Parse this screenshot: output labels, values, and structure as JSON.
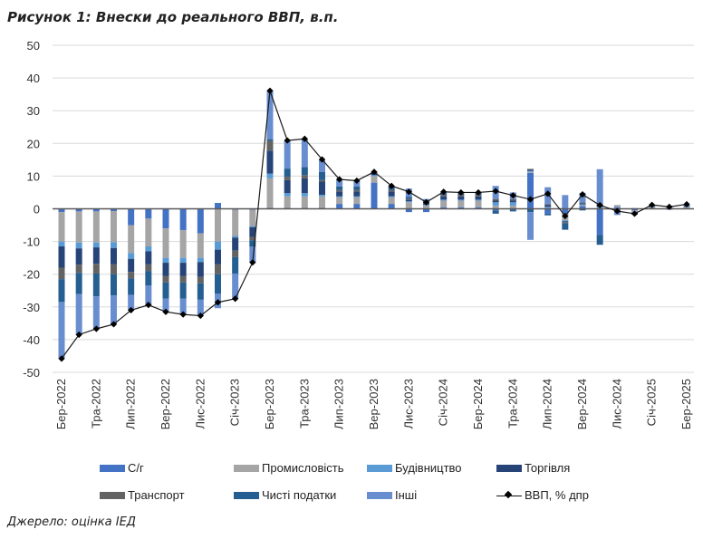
{
  "title": "Рисунок 1: Внески до реального ВВП, в.п.",
  "source": "Джерело: оцінка ІЕД",
  "chart_data": {
    "type": "bar",
    "subtype": "stacked-bar-with-line",
    "title": "Рисунок 1: Внески до реального ВВП, в.п.",
    "xlabel": "",
    "ylabel": "",
    "ylim": [
      -50,
      50
    ],
    "yticks": [
      50,
      40,
      30,
      20,
      10,
      0,
      -10,
      -20,
      -30,
      -40,
      -50
    ],
    "grid": true,
    "legend_position": "bottom",
    "categories": [
      "Бер-2022",
      "Кві-2022",
      "Тра-2022",
      "Чер-2022",
      "Лип-2022",
      "Сер-2022",
      "Вер-2022",
      "Жов-2022",
      "Лис-2022",
      "Гру-2022",
      "Січ-2023",
      "Лют-2023",
      "Бер-2023",
      "Кві-2023",
      "Тра-2023",
      "Чер-2023",
      "Лип-2023",
      "Сер-2023",
      "Вер-2023",
      "Жов-2023",
      "Лис-2023",
      "Гру-2023",
      "Січ-2024",
      "Лют-2024",
      "Бер-2024",
      "Кві-2024",
      "Тра-2024",
      "Чер-2024",
      "Лип-2024",
      "Сер-2024",
      "Вер-2024",
      "Жов-2024",
      "Лис-2024",
      "Гру-2024",
      "Січ-2025",
      "Лют-2025",
      "Бер-2025"
    ],
    "tick_labels": [
      "Бер-2022",
      "Тра-2022",
      "Лип-2022",
      "Вер-2022",
      "Лис-2022",
      "Січ-2023",
      "Бер-2023",
      "Тра-2023",
      "Лип-2023",
      "Вер-2023",
      "Лис-2023",
      "Січ-2024",
      "Бер-2024",
      "Тра-2024",
      "Лип-2024",
      "Вер-2024",
      "Лис-2024",
      "Січ-2025",
      "Бер-2025"
    ],
    "series": [
      {
        "name": "С/г",
        "color": "#4472C4",
        "kind": "bar",
        "values": [
          -1.0,
          -0.8,
          -0.8,
          -0.7,
          -5.0,
          -3.0,
          -6.0,
          -6.5,
          -7.5,
          1.8,
          -0.3,
          -0.3,
          0.3,
          0.3,
          0.3,
          0.3,
          1.5,
          1.5,
          8.0,
          1.5,
          -1.0,
          -1.0,
          0.5,
          0.5,
          0.5,
          -0.5,
          -0.3,
          11.0,
          -1.5,
          -1.5,
          0.8,
          -8.0,
          0.5,
          -0.5,
          0.2,
          0.2,
          0.2
        ]
      },
      {
        "name": "Промисловість",
        "color": "#A5A5A5",
        "kind": "bar",
        "values": [
          -9.0,
          -9.5,
          -9.5,
          -9.5,
          -8.5,
          -8.5,
          -9.0,
          -8.5,
          -7.5,
          -10.0,
          -8.0,
          -5.0,
          9.0,
          3.5,
          3.5,
          3.5,
          2.0,
          2.0,
          2.0,
          2.0,
          2.0,
          1.0,
          2.0,
          2.0,
          2.0,
          1.0,
          1.0,
          0.3,
          0.3,
          -2.0,
          0.3,
          0.3,
          0.3,
          -0.5,
          0.2,
          0.2,
          0.2
        ]
      },
      {
        "name": "Будівництво",
        "color": "#5B9BD5",
        "kind": "bar",
        "values": [
          -1.5,
          -1.8,
          -1.5,
          -1.8,
          -1.8,
          -1.5,
          -1.5,
          -1.5,
          -1.3,
          -2.5,
          -0.5,
          -0.3,
          1.5,
          1.0,
          1.0,
          0.5,
          0.3,
          0.3,
          0.3,
          0.3,
          0.3,
          0.2,
          0.3,
          0.3,
          0.3,
          1.0,
          1.0,
          0.3,
          0.3,
          -0.3,
          0.3,
          0.3,
          0.1,
          -0.2,
          0.1,
          0.1,
          0.1
        ]
      },
      {
        "name": "Торгівля",
        "color": "#264478",
        "kind": "bar",
        "values": [
          -6.5,
          -5.0,
          -5.0,
          -5.0,
          -4.0,
          -4.0,
          -4.0,
          -4.0,
          -4.5,
          -4.5,
          -4.0,
          -3.0,
          7.0,
          4.0,
          4.5,
          4.0,
          1.5,
          1.5,
          0.5,
          1.5,
          0.5,
          0.3,
          1.0,
          1.0,
          1.0,
          0.5,
          0.5,
          0.3,
          0.5,
          -0.3,
          0.3,
          0.5,
          0.1,
          -0.2,
          0.1,
          0.1,
          0.1
        ]
      },
      {
        "name": "Транспорт",
        "color": "#636363",
        "kind": "bar",
        "values": [
          -3.5,
          -2.5,
          -3.0,
          -3.0,
          -2.0,
          -2.0,
          -2.0,
          -2.0,
          -2.0,
          -3.0,
          -2.0,
          -1.0,
          3.0,
          1.0,
          1.0,
          0.5,
          0.5,
          0.5,
          0.2,
          0.5,
          0.3,
          0.2,
          0.5,
          0.5,
          0.5,
          0.5,
          0.5,
          0.3,
          0.3,
          -0.3,
          0.3,
          0.3,
          0.1,
          -0.1,
          0.1,
          0.1,
          0.1
        ]
      },
      {
        "name": "Чисті податки",
        "color": "#255E91",
        "kind": "bar",
        "values": [
          -7.0,
          -6.5,
          -7.0,
          -6.5,
          -5.0,
          -4.5,
          -5.0,
          -5.0,
          -5.0,
          -6.0,
          -5.0,
          -2.0,
          0.5,
          2.5,
          2.5,
          2.5,
          1.0,
          1.0,
          0.2,
          1.0,
          0.5,
          0.3,
          0.5,
          0.5,
          0.5,
          -1.0,
          -0.5,
          -1.0,
          -0.5,
          -2.0,
          -0.5,
          -3.0,
          -0.3,
          -0.3,
          0.2,
          0.2,
          0.2
        ]
      },
      {
        "name": "Інші",
        "color": "#698ED0",
        "kind": "bar",
        "values": [
          -17.3,
          -12.4,
          -9.9,
          -8.8,
          -4.7,
          -5.9,
          -4.0,
          -4.8,
          -4.9,
          -4.4,
          -7.7,
          -4.8,
          14.8,
          8.6,
          8.6,
          3.8,
          2.2,
          1.8,
          0.1,
          0.2,
          2.6,
          1.0,
          0.4,
          0.2,
          0.2,
          4.0,
          2.0,
          -8.5,
          5.2,
          4.2,
          2.9,
          10.7,
          -1.6,
          0.2,
          0.3,
          -0.3,
          0.5
        ]
      },
      {
        "name": "ВВП, % дпр",
        "color": "#000000",
        "kind": "line",
        "values": [
          -45.8,
          -38.5,
          -36.7,
          -35.3,
          -31.0,
          -29.4,
          -31.5,
          -32.3,
          -32.7,
          -28.6,
          -27.5,
          -16.4,
          36.1,
          20.9,
          21.4,
          15.1,
          9.0,
          8.6,
          11.3,
          7.0,
          5.2,
          2.0,
          5.2,
          5.0,
          5.0,
          5.4,
          4.1,
          2.9,
          4.6,
          -2.2,
          4.4,
          1.1,
          -0.7,
          -1.5,
          1.2,
          0.6,
          1.4
        ]
      }
    ]
  },
  "legend": [
    {
      "label": "С/г",
      "type": "swatch",
      "color": "#4472C4"
    },
    {
      "label": "Промисловість",
      "type": "swatch",
      "color": "#A5A5A5"
    },
    {
      "label": "Будівництво",
      "type": "swatch",
      "color": "#5B9BD5"
    },
    {
      "label": "Торгівля",
      "type": "swatch",
      "color": "#264478"
    },
    {
      "label": "Транспорт",
      "type": "swatch",
      "color": "#636363"
    },
    {
      "label": "Чисті податки",
      "type": "swatch",
      "color": "#255E91"
    },
    {
      "label": "Інші",
      "type": "swatch",
      "color": "#698ED0"
    },
    {
      "label": "ВВП, % дпр",
      "type": "line",
      "color": "#000000"
    }
  ]
}
